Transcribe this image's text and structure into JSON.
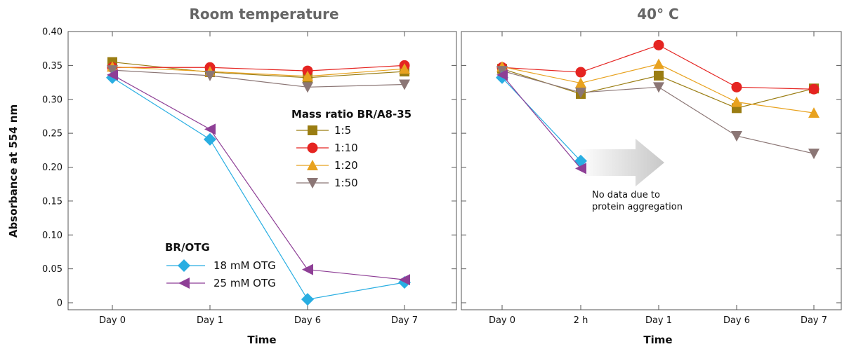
{
  "chart_data": [
    {
      "type": "line",
      "title": "Room temperature",
      "xlabel": "Time",
      "ylabel": "Absorbance at 554 nm",
      "categories": [
        "Day 0",
        "Day 1",
        "Day 6",
        "Day 7"
      ],
      "ylim": [
        0,
        0.4
      ],
      "yticks": [
        "0",
        "0.05",
        "0.10",
        "0.15",
        "0.20",
        "0.25",
        "0.30",
        "0.35",
        "0.40"
      ],
      "grid": false,
      "legends": [
        {
          "title": "Mass ratio BR/A8-35",
          "placement": "center-right",
          "entries": [
            "1:5",
            "1:10",
            "1:20",
            "1:50"
          ]
        },
        {
          "title": "BR/OTG",
          "placement": "bottom-left",
          "entries": [
            "18 mM OTG",
            "25 mM OTG"
          ]
        }
      ],
      "series": [
        {
          "name": "1:5",
          "marker": "square",
          "color": "#9a7d12",
          "values": [
            0.355,
            0.34,
            0.332,
            0.341
          ]
        },
        {
          "name": "1:10",
          "marker": "circle",
          "color": "#e52421",
          "values": [
            0.347,
            0.347,
            0.342,
            0.35
          ]
        },
        {
          "name": "1:20",
          "marker": "triangle-up",
          "color": "#e8a21f",
          "values": [
            0.348,
            0.341,
            0.334,
            0.345
          ]
        },
        {
          "name": "1:50",
          "marker": "triangle-down",
          "color": "#8b7675",
          "values": [
            0.343,
            0.335,
            0.318,
            0.322
          ]
        },
        {
          "name": "18 mM OTG",
          "marker": "diamond",
          "color": "#29aee2",
          "values": [
            0.332,
            0.241,
            0.005,
            0.03
          ]
        },
        {
          "name": "25 mM OTG",
          "marker": "triangle-left",
          "color": "#8e3f96",
          "values": [
            0.336,
            0.256,
            0.049,
            0.034
          ]
        }
      ]
    },
    {
      "type": "line",
      "title": "40° C",
      "xlabel": "Time",
      "ylabel": "",
      "categories": [
        "Day 0",
        "2 h",
        "Day 1",
        "Day 6",
        "Day 7"
      ],
      "ylim": [
        0,
        0.4
      ],
      "grid": false,
      "annotation": {
        "text_lines": [
          "No data due to",
          "protein aggregation"
        ],
        "arrow": "right"
      },
      "series": [
        {
          "name": "1:5",
          "marker": "square",
          "color": "#9a7d12",
          "values": [
            0.345,
            0.308,
            0.335,
            0.287,
            0.316
          ]
        },
        {
          "name": "1:10",
          "marker": "circle",
          "color": "#e52421",
          "values": [
            0.347,
            0.34,
            0.38,
            0.318,
            0.315
          ]
        },
        {
          "name": "1:20",
          "marker": "triangle-up",
          "color": "#e8a21f",
          "values": [
            0.348,
            0.324,
            0.352,
            0.296,
            0.28
          ]
        },
        {
          "name": "1:50",
          "marker": "triangle-down",
          "color": "#8b7675",
          "values": [
            0.342,
            0.31,
            0.318,
            0.246,
            0.22
          ]
        },
        {
          "name": "18 mM OTG",
          "marker": "diamond",
          "color": "#29aee2",
          "values": [
            0.332,
            0.209,
            null,
            null,
            null
          ]
        },
        {
          "name": "25 mM OTG",
          "marker": "triangle-left",
          "color": "#8e3f96",
          "values": [
            0.336,
            0.198,
            null,
            null,
            null
          ]
        }
      ]
    }
  ]
}
